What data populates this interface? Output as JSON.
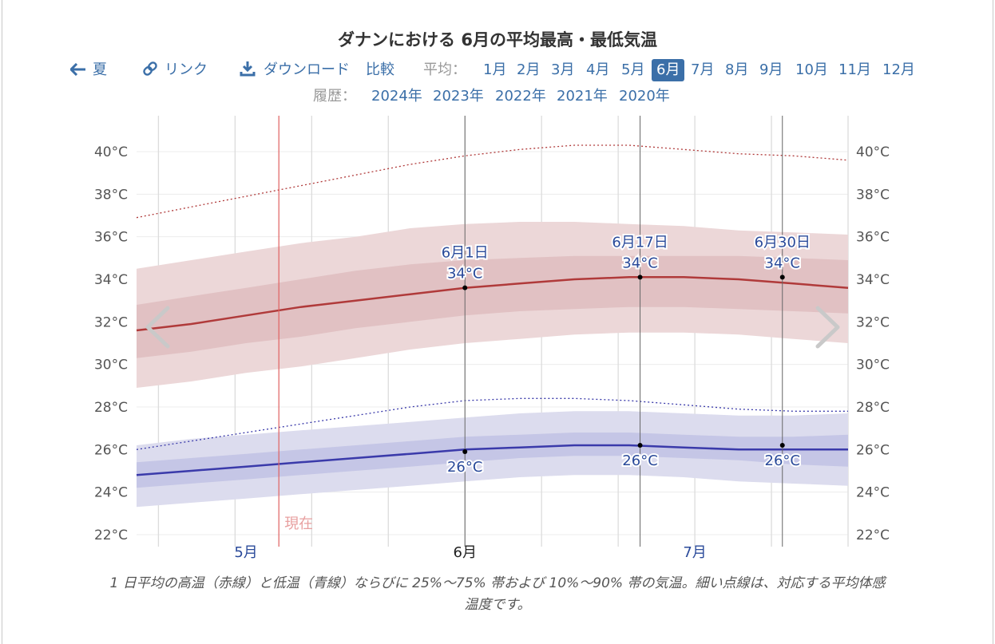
{
  "title": "ダナンにおける 6月の平均最高・最低気温",
  "nav": {
    "prev_label": "夏",
    "link_label": "リンク",
    "download_label": "ダウンロード",
    "compare_label": "比較",
    "average_label": "平均：",
    "months": [
      "1月",
      "2月",
      "3月",
      "4月",
      "5月",
      "6月",
      "7月",
      "8月",
      "9月",
      "10月",
      "11月",
      "12月"
    ],
    "selected_month": "6月"
  },
  "history": {
    "label": "履歴：",
    "years": [
      "2024年",
      "2023年",
      "2022年",
      "2021年",
      "2020年"
    ]
  },
  "caption": "1 日平均の高温（赤線）と低温（青線）ならびに 25%～75% 帯および 10%～90% 帯の気温。細い点線は、対応する平均体感温度です。",
  "colors": {
    "accent": "#3b6fa8",
    "high": "#b03a3a",
    "low": "#3a3aaa",
    "today": "#e06060"
  },
  "chart_data": {
    "type": "line",
    "title": "ダナンにおける 6月の平均最高・最低気温",
    "x_unit": "days relative to June 1",
    "xlim": [
      -30,
      35
    ],
    "ylim": [
      22,
      41
    ],
    "y_ticks": [
      "22°C",
      "24°C",
      "26°C",
      "28°C",
      "30°C",
      "32°C",
      "34°C",
      "36°C",
      "38°C",
      "40°C"
    ],
    "x_labels": [
      {
        "day": -20,
        "label": "5月"
      },
      {
        "day": 0,
        "label": "6月"
      },
      {
        "day": 21,
        "label": "7月"
      }
    ],
    "x": [
      -30,
      -25,
      -20,
      -15,
      -10,
      -5,
      0,
      5,
      10,
      15,
      20,
      25,
      30,
      35
    ],
    "series": [
      {
        "name": "高温 10%",
        "values": [
          28.9,
          29.2,
          29.6,
          29.9,
          30.3,
          30.7,
          31.0,
          31.2,
          31.4,
          31.5,
          31.5,
          31.4,
          31.2,
          31.0
        ]
      },
      {
        "name": "高温 25%",
        "values": [
          30.3,
          30.6,
          31.0,
          31.3,
          31.7,
          32.0,
          32.3,
          32.5,
          32.6,
          32.7,
          32.7,
          32.6,
          32.5,
          32.4
        ]
      },
      {
        "name": "平均最高",
        "values": [
          31.6,
          31.9,
          32.3,
          32.7,
          33.0,
          33.3,
          33.6,
          33.8,
          34.0,
          34.1,
          34.1,
          34.0,
          33.8,
          33.6
        ]
      },
      {
        "name": "高温 75%",
        "values": [
          32.8,
          33.2,
          33.6,
          34.0,
          34.4,
          34.7,
          34.9,
          35.0,
          35.1,
          35.1,
          35.1,
          35.1,
          35.0,
          34.9
        ]
      },
      {
        "name": "高温 90%",
        "values": [
          34.5,
          34.9,
          35.3,
          35.7,
          36.0,
          36.4,
          36.6,
          36.7,
          36.7,
          36.6,
          36.5,
          36.3,
          36.2,
          36.1
        ]
      },
      {
        "name": "最高 体感温度",
        "values": [
          36.9,
          37.4,
          37.9,
          38.4,
          38.9,
          39.4,
          39.8,
          40.1,
          40.3,
          40.3,
          40.1,
          39.9,
          39.8,
          39.6
        ]
      },
      {
        "name": "低温 10%",
        "values": [
          23.3,
          23.5,
          23.7,
          23.9,
          24.1,
          24.3,
          24.5,
          24.7,
          24.8,
          24.8,
          24.7,
          24.5,
          24.4,
          24.3
        ]
      },
      {
        "name": "低温 25%",
        "values": [
          24.2,
          24.4,
          24.6,
          24.8,
          25.0,
          25.2,
          25.4,
          25.6,
          25.7,
          25.7,
          25.6,
          25.5,
          25.3,
          25.2
        ]
      },
      {
        "name": "平均最低",
        "values": [
          24.8,
          25.0,
          25.2,
          25.4,
          25.6,
          25.8,
          26.0,
          26.1,
          26.2,
          26.2,
          26.1,
          26.0,
          26.0,
          26.0
        ]
      },
      {
        "name": "低温 75%",
        "values": [
          25.4,
          25.6,
          25.8,
          26.0,
          26.2,
          26.4,
          26.6,
          26.7,
          26.8,
          26.8,
          26.7,
          26.6,
          26.6,
          26.7
        ]
      },
      {
        "name": "低温 90%",
        "values": [
          26.2,
          26.5,
          26.7,
          26.9,
          27.1,
          27.3,
          27.5,
          27.7,
          27.8,
          27.8,
          27.7,
          27.6,
          27.6,
          27.7
        ]
      },
      {
        "name": "最低 体感温度",
        "values": [
          26.0,
          26.4,
          26.8,
          27.2,
          27.6,
          28.0,
          28.3,
          28.4,
          28.4,
          28.3,
          28.1,
          27.9,
          27.8,
          27.8
        ]
      }
    ],
    "today": {
      "day": -17,
      "label": "現在"
    },
    "annotations": [
      {
        "day": 0,
        "date": "6月1日",
        "high": 34,
        "high_y": 33.6,
        "high_label": "34°C",
        "low": 26,
        "low_y": 25.9,
        "low_label": "26°C"
      },
      {
        "day": 16,
        "date": "6月17日",
        "high": 34,
        "high_y": 34.1,
        "high_label": "34°C",
        "low": 26,
        "low_y": 26.2,
        "low_label": "26°C"
      },
      {
        "day": 29,
        "date": "6月30日",
        "high": 34,
        "high_y": 34.1,
        "high_label": "34°C",
        "low": 26,
        "low_y": 26.2,
        "low_label": "26°C"
      }
    ]
  }
}
